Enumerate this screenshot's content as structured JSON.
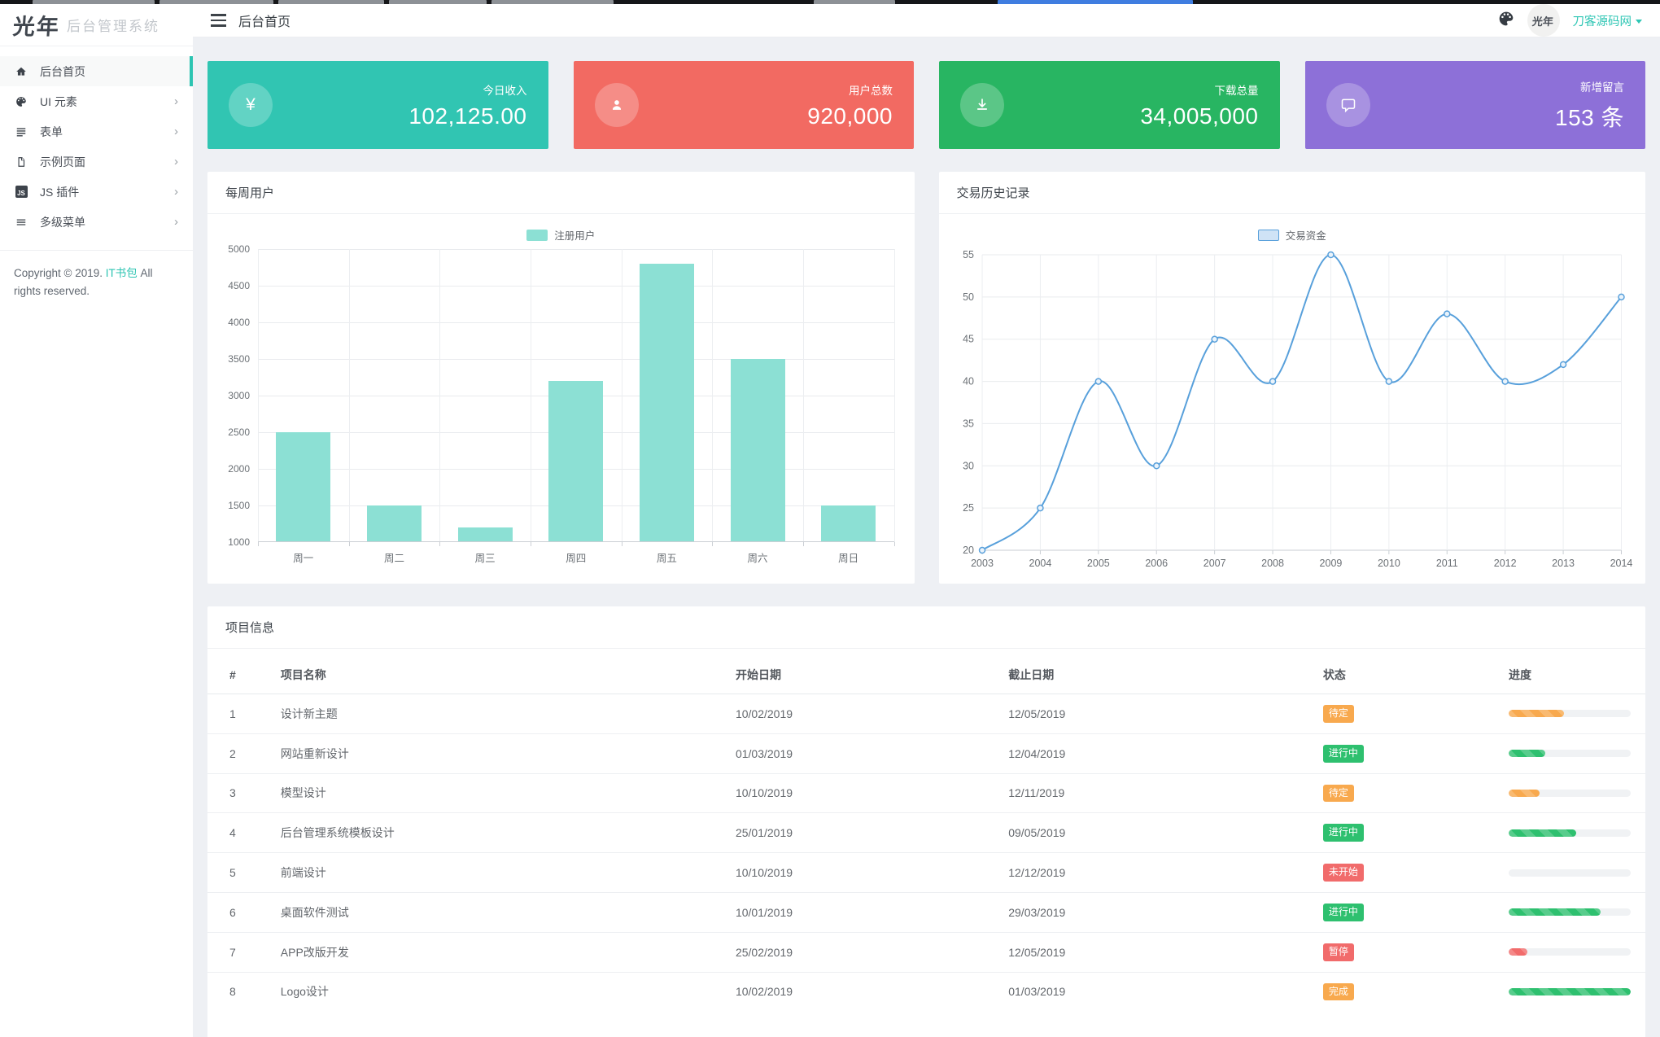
{
  "sidebar": {
    "logo_mark": "光年",
    "logo_text": "后台管理系统",
    "items": [
      {
        "label": "后台首页",
        "icon": "home-icon",
        "active": true,
        "has_children": false
      },
      {
        "label": "UI 元素",
        "icon": "palette-icon",
        "active": false,
        "has_children": true
      },
      {
        "label": "表单",
        "icon": "form-icon",
        "active": false,
        "has_children": true
      },
      {
        "label": "示例页面",
        "icon": "page-icon",
        "active": false,
        "has_children": true
      },
      {
        "label": "JS 插件",
        "icon": "js-icon",
        "active": false,
        "has_children": true
      },
      {
        "label": "多级菜单",
        "icon": "multilevel-menu-icon",
        "active": false,
        "has_children": true
      }
    ],
    "copyright_prefix": "Copyright © 2019.",
    "copyright_link": "IT书包",
    "copyright_suffix": "All rights reserved."
  },
  "header": {
    "title": "后台首页",
    "user_name": "刀客源码网"
  },
  "brand_color": "#2cc4b2",
  "stat_cards": [
    {
      "label": "今日收入",
      "value": "102,125.00",
      "icon": "yen-icon",
      "icon_glyph": "¥",
      "color": "#31c5b2"
    },
    {
      "label": "用户总数",
      "value": "920,000",
      "icon": "user-icon",
      "color": "#f26a62"
    },
    {
      "label": "下载总量",
      "value": "34,005,000",
      "icon": "download-icon",
      "color": "#28b562"
    },
    {
      "label": "新增留言",
      "value": "153 条",
      "icon": "comment-icon",
      "color": "#8d70d8"
    }
  ],
  "chart_data": [
    {
      "type": "bar",
      "title": "每周用户",
      "legend": "注册用户",
      "legend_position": "top",
      "categories": [
        "周一",
        "周二",
        "周三",
        "周四",
        "周五",
        "周六",
        "周日"
      ],
      "values": [
        2500,
        1500,
        1200,
        3200,
        4800,
        3500,
        1500
      ],
      "xlabel": "",
      "ylabel": "",
      "ylim": [
        1000,
        5000
      ],
      "ytick_step": 500,
      "grid": true,
      "bar_color": "#8ce0d4"
    },
    {
      "type": "line",
      "title": "交易历史记录",
      "legend": "交易资金",
      "legend_position": "top",
      "x": [
        2003,
        2004,
        2005,
        2006,
        2007,
        2008,
        2009,
        2010,
        2011,
        2012,
        2013,
        2014
      ],
      "values": [
        20,
        25,
        40,
        30,
        45,
        40,
        55,
        40,
        48,
        40,
        42,
        50
      ],
      "xlabel": "",
      "ylabel": "",
      "ylim": [
        20,
        55
      ],
      "ytick_step": 5,
      "grid": true,
      "smooth": true,
      "line_color": "#58a0db",
      "legend_fill": "#cfe3f6"
    }
  ],
  "table": {
    "title": "项目信息",
    "columns": [
      "#",
      "项目名称",
      "开始日期",
      "截止日期",
      "状态",
      "进度"
    ],
    "rows": [
      {
        "id": "1",
        "name": "设计新主题",
        "start": "10/02/2019",
        "end": "12/05/2019",
        "status": "待定",
        "status_color": "#f8a94e",
        "progress": 45,
        "progress_color": "#f8a94e"
      },
      {
        "id": "2",
        "name": "网站重新设计",
        "start": "01/03/2019",
        "end": "12/04/2019",
        "status": "进行中",
        "status_color": "#2ec06f",
        "progress": 30,
        "progress_color": "#2ec06f"
      },
      {
        "id": "3",
        "name": "模型设计",
        "start": "10/10/2019",
        "end": "12/11/2019",
        "status": "待定",
        "status_color": "#f8a94e",
        "progress": 25,
        "progress_color": "#f8a94e"
      },
      {
        "id": "4",
        "name": "后台管理系统模板设计",
        "start": "25/01/2019",
        "end": "09/05/2019",
        "status": "进行中",
        "status_color": "#2ec06f",
        "progress": 55,
        "progress_color": "#2ec06f"
      },
      {
        "id": "5",
        "name": "前端设计",
        "start": "10/10/2019",
        "end": "12/12/2019",
        "status": "未开始",
        "status_color": "#f16b6b",
        "progress": 0,
        "progress_color": "#2ec06f"
      },
      {
        "id": "6",
        "name": "桌面软件测试",
        "start": "10/01/2019",
        "end": "29/03/2019",
        "status": "进行中",
        "status_color": "#2ec06f",
        "progress": 75,
        "progress_color": "#2ec06f"
      },
      {
        "id": "7",
        "name": "APP改版开发",
        "start": "25/02/2019",
        "end": "12/05/2019",
        "status": "暂停",
        "status_color": "#f16b6b",
        "progress": 15,
        "progress_color": "#f16b6b"
      },
      {
        "id": "8",
        "name": "Logo设计",
        "start": "10/02/2019",
        "end": "01/03/2019",
        "status": "完成",
        "status_color": "#f8a94e",
        "progress": 100,
        "progress_color": "#2ec06f"
      }
    ]
  }
}
